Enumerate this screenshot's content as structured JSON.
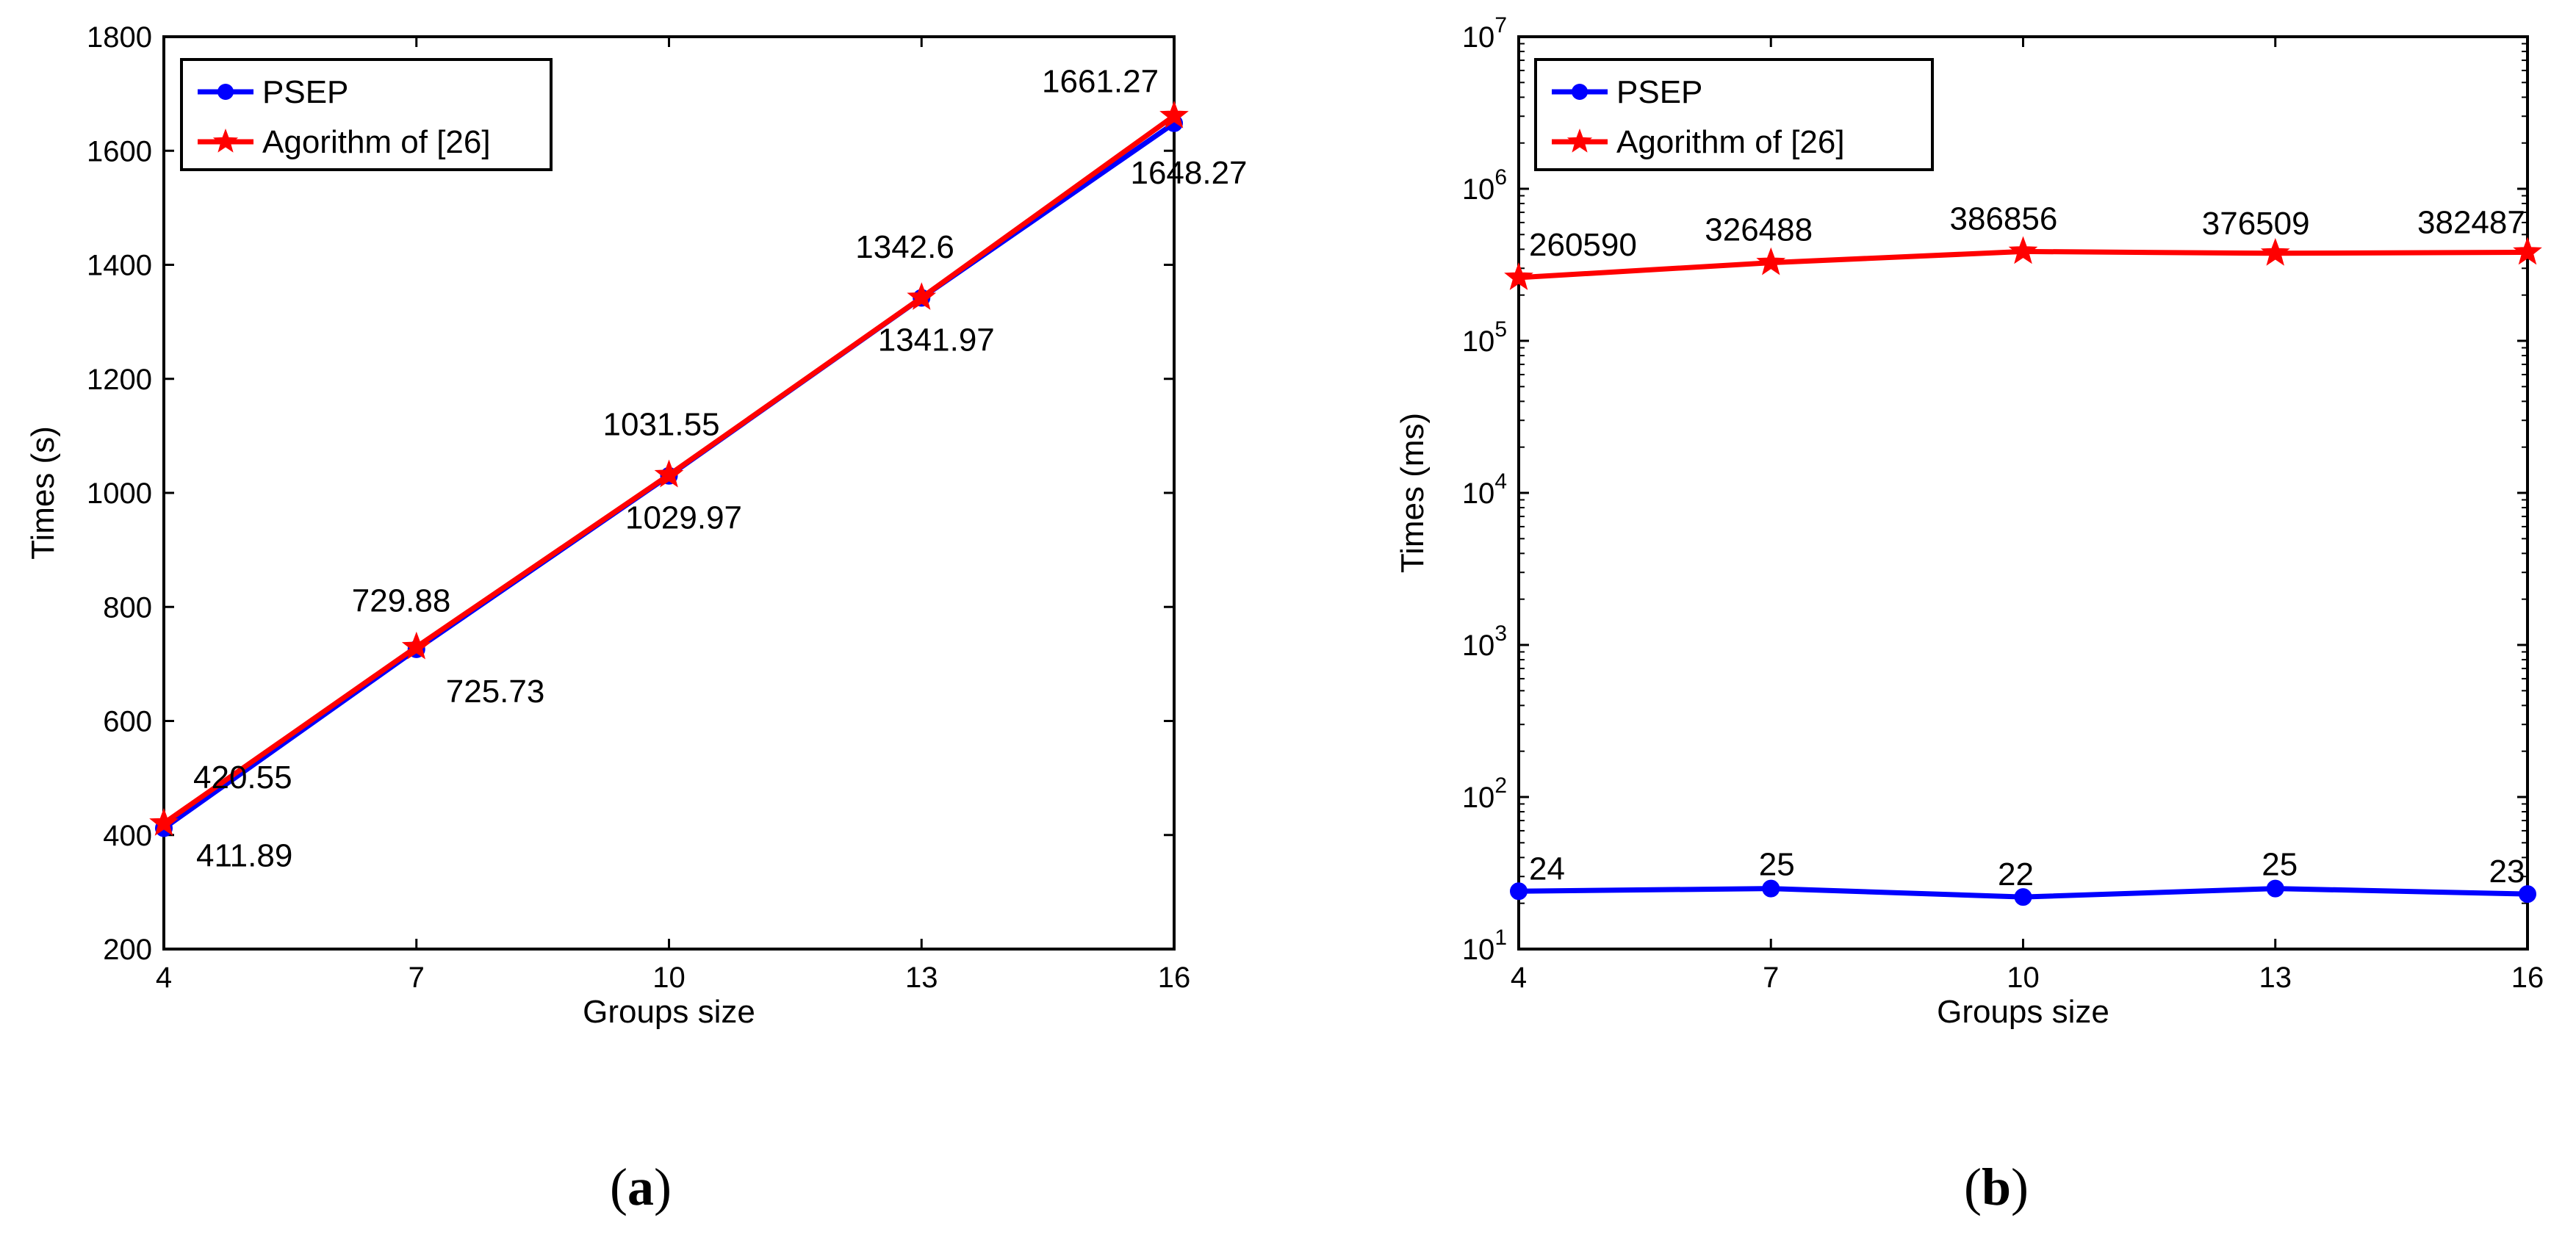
{
  "figure": {
    "panels": [
      {
        "label_open": "(",
        "label_letter": "a",
        "label_close": ")"
      },
      {
        "label_open": "(",
        "label_letter": "b",
        "label_close": ")"
      }
    ]
  },
  "colors": {
    "psep": "#0000ff",
    "algorithm": "#ff0000",
    "axes": "#000000"
  },
  "chart_data": [
    {
      "type": "line",
      "title": "",
      "xlabel": "Groups size",
      "ylabel": "Times  (s)",
      "yscale": "linear",
      "xlim": [
        4,
        16
      ],
      "ylim": [
        200,
        1800
      ],
      "x": [
        4,
        7,
        10,
        13,
        16
      ],
      "xticks": [
        "4",
        "7",
        "10",
        "13",
        "16"
      ],
      "yticks": [
        "200",
        "400",
        "600",
        "800",
        "1000",
        "1200",
        "1400",
        "1600",
        "1800"
      ],
      "grid": false,
      "legend_position": "top-left",
      "series": [
        {
          "name": "PSEP",
          "marker": "circle",
          "values": [
            411.89,
            725.73,
            1029.97,
            1341.97,
            1648.27
          ],
          "labels": [
            "411.89",
            "725.73",
            "1029.97",
            "1341.97",
            "1648.27"
          ]
        },
        {
          "name": "Agorithm of [26]",
          "marker": "star",
          "values": [
            420.55,
            729.88,
            1031.55,
            1342.6,
            1661.27
          ],
          "labels": [
            "420.55",
            "729.88",
            "1031.55",
            "1342.6",
            "1661.27"
          ]
        }
      ]
    },
    {
      "type": "line",
      "title": "",
      "xlabel": "Groups size",
      "ylabel": "Times  (ms)",
      "yscale": "log",
      "xlim": [
        4,
        16
      ],
      "ylim": [
        10,
        10000000
      ],
      "x": [
        4,
        7,
        10,
        13,
        16
      ],
      "xticks": [
        "4",
        "7",
        "10",
        "13",
        "16"
      ],
      "yticks": [
        {
          "base": "10",
          "exp": "1"
        },
        {
          "base": "10",
          "exp": "2"
        },
        {
          "base": "10",
          "exp": "3"
        },
        {
          "base": "10",
          "exp": "4"
        },
        {
          "base": "10",
          "exp": "5"
        },
        {
          "base": "10",
          "exp": "6"
        },
        {
          "base": "10",
          "exp": "7"
        }
      ],
      "grid": false,
      "legend_position": "top-left",
      "series": [
        {
          "name": "PSEP",
          "marker": "circle",
          "values": [
            24,
            25,
            22,
            25,
            23
          ],
          "labels": [
            "24",
            "25",
            "22",
            "25",
            "23"
          ]
        },
        {
          "name": "Agorithm of [26]",
          "marker": "star",
          "values": [
            260590,
            326488,
            386856,
            376509,
            382487
          ],
          "labels": [
            "260590",
            "326488",
            "386856",
            "376509",
            "382487"
          ]
        }
      ]
    }
  ]
}
